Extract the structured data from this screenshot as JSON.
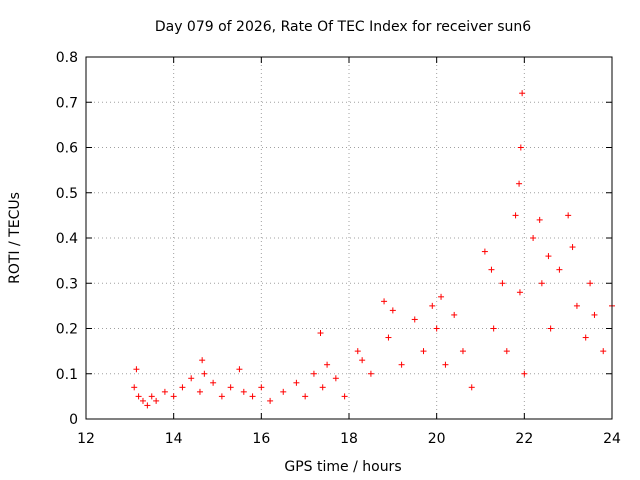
{
  "chart_data": {
    "type": "scatter",
    "title": "Day 079 of 2026, Rate Of TEC Index for receiver sun6",
    "xlabel": "GPS time / hours",
    "ylabel": "ROTI / TECUs",
    "xlim": [
      12,
      24
    ],
    "ylim": [
      0,
      0.8
    ],
    "xticks": [
      12,
      14,
      16,
      18,
      20,
      22,
      24
    ],
    "yticks": [
      0,
      0.1,
      0.2,
      0.3,
      0.4,
      0.5,
      0.6,
      0.7,
      0.8
    ],
    "grid": true,
    "legend": "none",
    "marker": "+",
    "marker_color": "#ff0000",
    "series": [
      {
        "x": [
          13.1,
          13.2,
          13.3,
          13.4,
          13.5,
          13.6,
          13.8,
          14.0,
          14.2,
          14.4,
          14.6,
          14.7,
          14.9,
          15.1,
          15.3,
          15.5,
          15.6,
          15.8,
          16.0,
          16.2,
          16.5,
          16.8,
          17.0,
          17.2,
          17.4,
          17.5,
          17.7,
          17.9,
          18.2,
          18.5,
          18.8,
          18.9,
          19.2,
          19.5,
          19.7,
          19.9,
          20.0,
          20.2,
          20.4,
          20.6,
          20.8,
          21.1,
          21.3,
          21.5,
          21.6,
          21.8,
          21.9,
          22.0,
          22.2,
          22.4,
          22.6,
          22.8,
          23.0,
          23.2,
          23.4,
          23.6,
          23.8,
          24.0,
          17.35,
          21.95,
          21.92,
          21.88,
          22.35,
          23.1,
          21.25,
          19.0,
          18.3,
          20.1,
          22.55,
          23.5,
          13.15,
          14.65
        ],
        "y": [
          0.07,
          0.05,
          0.04,
          0.03,
          0.05,
          0.04,
          0.06,
          0.05,
          0.07,
          0.09,
          0.06,
          0.1,
          0.08,
          0.05,
          0.07,
          0.11,
          0.06,
          0.05,
          0.07,
          0.04,
          0.06,
          0.08,
          0.05,
          0.1,
          0.07,
          0.12,
          0.09,
          0.05,
          0.15,
          0.1,
          0.26,
          0.18,
          0.12,
          0.22,
          0.15,
          0.25,
          0.2,
          0.12,
          0.23,
          0.15,
          0.07,
          0.37,
          0.2,
          0.3,
          0.15,
          0.45,
          0.28,
          0.1,
          0.4,
          0.3,
          0.2,
          0.33,
          0.45,
          0.25,
          0.18,
          0.23,
          0.15,
          0.25,
          0.19,
          0.72,
          0.6,
          0.52,
          0.44,
          0.38,
          0.33,
          0.24,
          0.13,
          0.27,
          0.36,
          0.3,
          0.11,
          0.13
        ]
      }
    ]
  }
}
